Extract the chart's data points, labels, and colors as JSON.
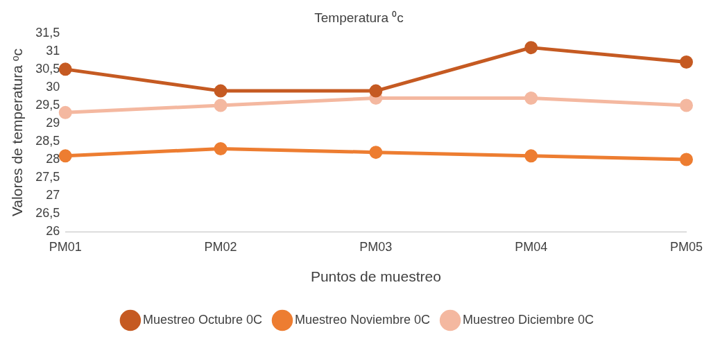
{
  "chart_data": {
    "type": "line",
    "title": "Temperatura ⁰c",
    "xlabel": "Puntos de muestreo",
    "ylabel": "Valores de temperatura ᵒc",
    "categories": [
      "PM01",
      "PM02",
      "PM03",
      "PM04",
      "PM05"
    ],
    "series": [
      {
        "name": "Muestreo Octubre 0C",
        "color": "#c55a22",
        "values": [
          30.5,
          29.9,
          29.9,
          31.1,
          30.7
        ]
      },
      {
        "name": "Muestreo Noviembre 0C",
        "color": "#ed7d31",
        "values": [
          28.1,
          28.3,
          28.2,
          28.1,
          28.0
        ]
      },
      {
        "name": "Muestreo Diciembre 0C",
        "color": "#f4b8a0",
        "values": [
          29.3,
          29.5,
          29.7,
          29.7,
          29.5
        ]
      }
    ],
    "ylim": [
      26,
      31.5
    ],
    "yticks": [
      {
        "value": 26,
        "label": "26"
      },
      {
        "value": 26.5,
        "label": "26,5"
      },
      {
        "value": 27,
        "label": "27"
      },
      {
        "value": 27.5,
        "label": "27,5"
      },
      {
        "value": 28,
        "label": "28"
      },
      {
        "value": 28.5,
        "label": "28,5"
      },
      {
        "value": 29,
        "label": "29"
      },
      {
        "value": 29.5,
        "label": "29,5"
      },
      {
        "value": 30,
        "label": "30"
      },
      {
        "value": 30.5,
        "label": "30,5"
      },
      {
        "value": 31,
        "label": "31"
      },
      {
        "value": 31.5,
        "label": "31,5"
      }
    ],
    "grid": false,
    "legend": "bottom",
    "marker": "circle",
    "line_style": "solid"
  }
}
